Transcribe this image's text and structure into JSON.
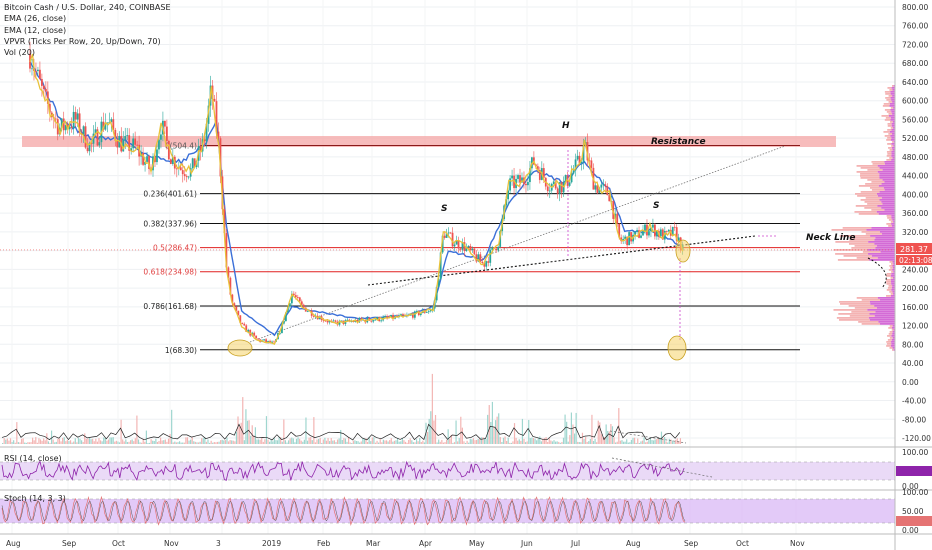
{
  "legend": {
    "title": "Bitcoin Cash / U.S. Dollar, 240, COINBASE",
    "ema26": "EMA (26, close)",
    "ema12": "EMA (12, close)",
    "vpvr": "VPVR (Ticks Per Row, 20, Up/Down, 70)",
    "vol": "Vol (20)"
  },
  "chart_data": {
    "type": "line",
    "symbol": "BCHUSD",
    "timeframe": "240",
    "exchange": "COINBASE",
    "x_ticks": [
      "Aug",
      "Sep",
      "Oct",
      "Nov",
      "3",
      "2019",
      "Feb",
      "Mar",
      "Apr",
      "May",
      "Jun",
      "Jul",
      "Aug",
      "Sep",
      "Oct",
      "Nov"
    ],
    "y_ticks": [
      "800.00",
      "760.00",
      "720.00",
      "680.00",
      "640.00",
      "600.00",
      "560.00",
      "520.00",
      "480.00",
      "440.00",
      "400.00",
      "360.00",
      "320.00",
      "280.00",
      "240.00",
      "200.00",
      "160.00",
      "120.00",
      "80.00",
      "40.00",
      "0.00",
      "-40.00",
      "-80.00",
      "-120.00"
    ],
    "ylim": [
      -120,
      800
    ],
    "current_price": "281.37",
    "countdown": "02:13:08",
    "price_series": [
      {
        "x": 0.0,
        "y": 700
      },
      {
        "x": 0.3,
        "y": 600
      },
      {
        "x": 0.6,
        "y": 540
      },
      {
        "x": 0.9,
        "y": 560
      },
      {
        "x": 1.2,
        "y": 500
      },
      {
        "x": 1.5,
        "y": 560
      },
      {
        "x": 1.8,
        "y": 510
      },
      {
        "x": 2.1,
        "y": 500
      },
      {
        "x": 2.4,
        "y": 450
      },
      {
        "x": 2.6,
        "y": 550
      },
      {
        "x": 2.8,
        "y": 480
      },
      {
        "x": 3.0,
        "y": 455
      },
      {
        "x": 3.2,
        "y": 450
      },
      {
        "x": 3.45,
        "y": 510
      },
      {
        "x": 3.6,
        "y": 625
      },
      {
        "x": 3.75,
        "y": 500
      },
      {
        "x": 3.9,
        "y": 240
      },
      {
        "x": 4.0,
        "y": 170
      },
      {
        "x": 4.2,
        "y": 120
      },
      {
        "x": 4.5,
        "y": 90
      },
      {
        "x": 4.85,
        "y": 80
      },
      {
        "x": 5.0,
        "y": 120
      },
      {
        "x": 5.2,
        "y": 190
      },
      {
        "x": 5.4,
        "y": 160
      },
      {
        "x": 5.7,
        "y": 140
      },
      {
        "x": 6.0,
        "y": 125
      },
      {
        "x": 6.5,
        "y": 130
      },
      {
        "x": 7.0,
        "y": 135
      },
      {
        "x": 7.5,
        "y": 140
      },
      {
        "x": 8.0,
        "y": 155
      },
      {
        "x": 8.1,
        "y": 220
      },
      {
        "x": 8.2,
        "y": 320
      },
      {
        "x": 8.4,
        "y": 300
      },
      {
        "x": 8.6,
        "y": 290
      },
      {
        "x": 9.0,
        "y": 250
      },
      {
        "x": 9.3,
        "y": 300
      },
      {
        "x": 9.5,
        "y": 420
      },
      {
        "x": 9.8,
        "y": 430
      },
      {
        "x": 10.0,
        "y": 470
      },
      {
        "x": 10.3,
        "y": 420
      },
      {
        "x": 10.6,
        "y": 420
      },
      {
        "x": 10.9,
        "y": 470
      },
      {
        "x": 11.0,
        "y": 505
      },
      {
        "x": 11.2,
        "y": 420
      },
      {
        "x": 11.5,
        "y": 400
      },
      {
        "x": 11.7,
        "y": 300
      },
      {
        "x": 12.0,
        "y": 310
      },
      {
        "x": 12.3,
        "y": 330
      },
      {
        "x": 12.6,
        "y": 310
      },
      {
        "x": 12.8,
        "y": 320
      },
      {
        "x": 12.95,
        "y": 281
      }
    ],
    "ema_series": [
      {
        "x": 0.0,
        "y": 690
      },
      {
        "x": 0.6,
        "y": 560
      },
      {
        "x": 1.2,
        "y": 520
      },
      {
        "x": 1.8,
        "y": 520
      },
      {
        "x": 2.4,
        "y": 480
      },
      {
        "x": 3.0,
        "y": 470
      },
      {
        "x": 3.5,
        "y": 510
      },
      {
        "x": 3.7,
        "y": 560
      },
      {
        "x": 3.9,
        "y": 330
      },
      {
        "x": 4.2,
        "y": 150
      },
      {
        "x": 4.85,
        "y": 100
      },
      {
        "x": 5.2,
        "y": 160
      },
      {
        "x": 5.7,
        "y": 150
      },
      {
        "x": 6.5,
        "y": 135
      },
      {
        "x": 7.5,
        "y": 142
      },
      {
        "x": 8.0,
        "y": 160
      },
      {
        "x": 8.3,
        "y": 280
      },
      {
        "x": 9.0,
        "y": 260
      },
      {
        "x": 9.5,
        "y": 380
      },
      {
        "x": 10.0,
        "y": 450
      },
      {
        "x": 10.6,
        "y": 425
      },
      {
        "x": 11.0,
        "y": 470
      },
      {
        "x": 11.5,
        "y": 410
      },
      {
        "x": 11.8,
        "y": 320
      },
      {
        "x": 12.3,
        "y": 322
      },
      {
        "x": 12.95,
        "y": 290
      }
    ],
    "fibonacci": [
      {
        "level": "0(504.4)",
        "value": 504.4,
        "label_color": "#555555",
        "line_color": "#8a1a1a"
      },
      {
        "level": "0.236(401.61)",
        "value": 401.61,
        "label_color": "#222222",
        "line_color": "#111111"
      },
      {
        "level": "0.382(337.96)",
        "value": 337.96,
        "label_color": "#222222",
        "line_color": "#111111"
      },
      {
        "level": "0.5(286.47)",
        "value": 286.47,
        "label_color": "#e04040",
        "line_color": "#e02020"
      },
      {
        "level": "0.618(234.98)",
        "value": 234.98,
        "label_color": "#e04040",
        "line_color": "#e02020"
      },
      {
        "level": "0.786(161.68)",
        "value": 161.68,
        "label_color": "#222222",
        "line_color": "#111111"
      },
      {
        "level": "1(68.30)",
        "value": 68.3,
        "label_color": "#222222",
        "line_color": "#111111"
      }
    ],
    "annotations": {
      "resistance": "Resistance",
      "neck_line": "Neck Line",
      "head": "H",
      "left_shoulder": "S",
      "right_shoulder": "S"
    },
    "rsi": {
      "label": "RSI (14, close)",
      "ticks": [
        "100.00",
        "0.00"
      ]
    },
    "stoch": {
      "label": "Stoch (14, 3, 3)",
      "ticks": [
        "100.00",
        "50.00",
        "0.00"
      ]
    },
    "colors": {
      "up": "#26a69a",
      "down": "#ef5350",
      "ema_slow": "#3a6fd8",
      "ema_fast": "#e8c23a",
      "resistance_band": "#f4a0a0",
      "rsi_line": "#8e24aa",
      "vpvr": "#e040fb"
    }
  }
}
